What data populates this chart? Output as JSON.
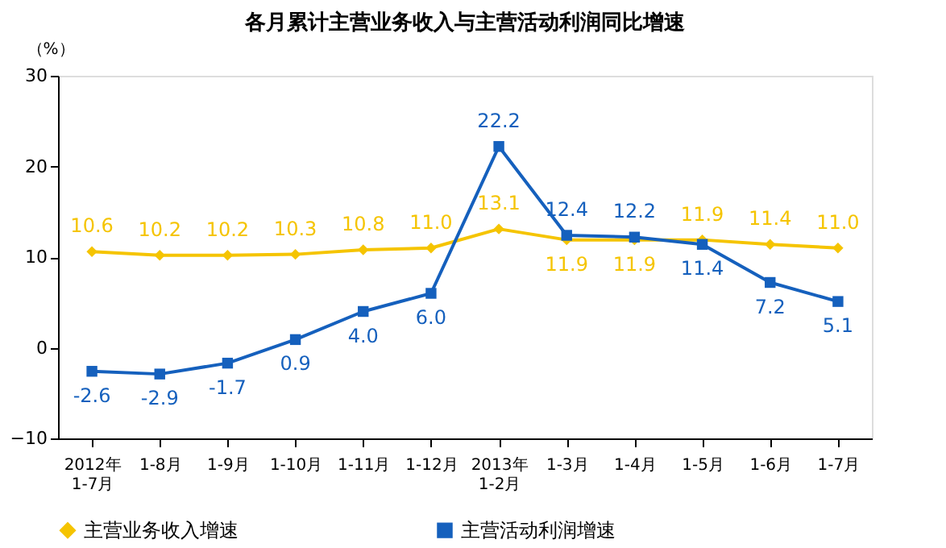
{
  "chart_data": {
    "type": "line",
    "title": "各月累计主营业务收入与主营活动利润同比增速",
    "ylabel": "（%）",
    "categories": [
      "2012年\n1-7月",
      "1-8月",
      "1-9月",
      "1-10月",
      "1-11月",
      "1-12月",
      "2013年\n1-2月",
      "1-3月",
      "1-4月",
      "1-5月",
      "1-6月",
      "1-7月"
    ],
    "series": [
      {
        "name": "主营业务收入增速",
        "color": "#f5c400",
        "marker": "diamond",
        "values": [
          10.6,
          10.2,
          10.2,
          10.3,
          10.8,
          11.0,
          13.1,
          11.9,
          11.9,
          11.9,
          11.4,
          11.0
        ],
        "value_labels": [
          "10.6",
          "10.2",
          "10.2",
          "10.3",
          "10.8",
          "11.0",
          "13.1",
          "11.9",
          "11.9",
          "11.9",
          "11.4",
          "11.0"
        ]
      },
      {
        "name": "主营活动利润增速",
        "color": "#1560bd",
        "marker": "square",
        "values": [
          -2.6,
          -2.9,
          -1.7,
          0.9,
          4.0,
          6.0,
          22.2,
          12.4,
          12.2,
          11.4,
          7.2,
          5.1
        ],
        "value_labels": [
          "-2.6",
          "-2.9",
          "-1.7",
          "0.9",
          "4.0",
          "6.0",
          "22.2",
          "12.4",
          "12.2",
          "11.4",
          "7.2",
          "5.1"
        ]
      }
    ],
    "ylim": [
      -10,
      30
    ],
    "yticks": [
      -10,
      0,
      10,
      20,
      30
    ],
    "grid": false,
    "legend": "bottom",
    "line_style": "solid"
  }
}
